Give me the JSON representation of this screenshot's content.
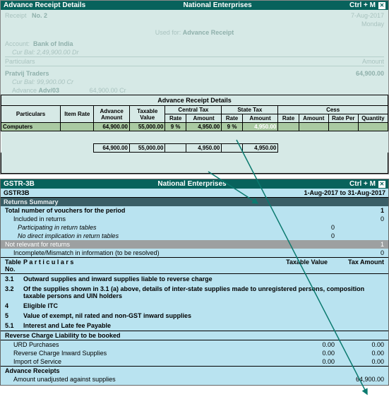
{
  "win1": {
    "title_left": "Advance Receipt Details",
    "title_center": "National Enterprises",
    "title_right": "Ctrl + M",
    "faded": {
      "receipt_lbl": "Receipt",
      "receipt_no": "No. 2",
      "date": "7-Aug-2017",
      "day": "Monday",
      "used_for": "Used for:",
      "used_val": "Advance Receipt",
      "account_lbl": "Account:",
      "account": "Bank of India",
      "curbal1": "Cur Bal: 2,49,900.00 Dr",
      "particulars": "Particulars",
      "amount": "Amount",
      "party": "Pratvij Traders",
      "party_amt": "64,900.00",
      "curbal2": "Cur Bal: 99,900.00 Cr",
      "advance_lbl": "Advance",
      "advance_ref": "Adv/03",
      "advance_amt": "64,900.00  Cr"
    },
    "section_title": "Advance Receipt Details",
    "headers": {
      "particulars": "Particulars",
      "item_rate": "Item Rate",
      "adv_amt": "Advance Amount",
      "tax_val": "Taxable Value",
      "ctax": "Central Tax",
      "stax": "State Tax",
      "cess": "Cess",
      "rate": "Rate",
      "amount": "Amount",
      "rate_per": "Rate Per",
      "qty": "Quantity"
    },
    "row": {
      "name": "Computers",
      "adv": "64,900.00",
      "taxval": "55,000.00",
      "crate": "9 %",
      "camt": "4,950.00",
      "srate": "9 %",
      "samt": "4,950.00"
    },
    "totals": {
      "adv": "64,900.00",
      "taxval": "55,000.00",
      "camt": "4,950.00",
      "samt": "4,950.00"
    }
  },
  "win2": {
    "title_left": "GSTR-3B",
    "title_center": "National Enterprises",
    "title_right": "Ctrl + M",
    "sub_left": "GSTR3B",
    "sub_right": "1-Aug-2017 to 31-Aug-2017",
    "returns_summary": "Returns Summary",
    "total_vouchers": {
      "label": "Total number of vouchers for the period",
      "val": "1"
    },
    "included": {
      "label": "Included in returns",
      "val": "0"
    },
    "participating": {
      "label": "Participating in return tables",
      "val": "0"
    },
    "nodirect": {
      "label": "No direct implication in return tables",
      "val": "0"
    },
    "not_relevant": {
      "label": "Not relevant for returns",
      "val": "1"
    },
    "incomplete": {
      "label": "Incomplete/Mismatch in information (to be resolved)",
      "val": "0"
    },
    "thead": {
      "no": "Table No.",
      "part": "P a r t i c u l a r s",
      "taxval": "Taxable Value",
      "taxamt": "Tax Amount"
    },
    "items": [
      {
        "no": "3.1",
        "txt": "Outward supplies and inward supplies liable to reverse charge"
      },
      {
        "no": "3.2",
        "txt": "Of the supplies shown in 3.1 (a) above, details of inter-state supplies made to unregistered persons, composition taxable persons and UIN holders"
      },
      {
        "no": "4",
        "txt": "Eligible ITC"
      },
      {
        "no": "5",
        "txt": "Value of exempt, nil rated and non-GST inward supplies"
      },
      {
        "no": "5.1",
        "txt": "Interest and Late fee Payable"
      }
    ],
    "reverse_header": "Reverse Charge Liability to be booked",
    "reverse": [
      {
        "label": "URD Purchases",
        "v1": "0.00",
        "v2": "0.00"
      },
      {
        "label": "Reverse Charge Inward Supplies",
        "v1": "0.00",
        "v2": "0.00"
      },
      {
        "label": "Import of Service",
        "v1": "0.00",
        "v2": "0.00"
      }
    ],
    "advance": {
      "label": "Advance Receipts",
      "sub": "Amount unadjusted against supplies",
      "amt": "64,900.00"
    }
  }
}
